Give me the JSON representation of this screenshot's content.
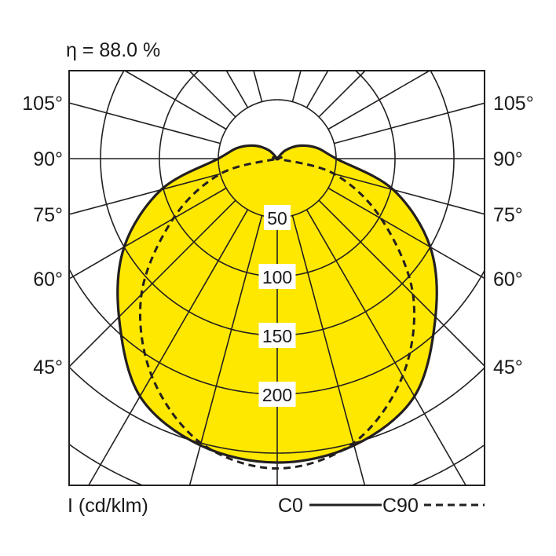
{
  "chart_data": {
    "type": "polar",
    "title": "η = 88.0 %",
    "unit_label": "I (cd/klm)",
    "angles_deg": [
      0,
      15,
      30,
      45,
      60,
      75,
      90,
      105,
      120,
      135,
      150,
      165,
      180
    ],
    "series": [
      {
        "name": "C0",
        "style": "solid",
        "values": [
          258,
          252,
          233,
          190,
          150,
          102,
          50,
          35,
          22,
          10,
          0,
          0,
          0
        ]
      },
      {
        "name": "C90",
        "style": "dashed",
        "values": [
          263,
          250,
          213,
          163,
          102,
          50,
          0,
          0,
          0,
          0,
          0,
          0,
          0
        ]
      }
    ],
    "radial_ticks": [
      50,
      100,
      150,
      200
    ],
    "radial_grid": [
      50,
      100,
      150,
      200,
      250,
      300
    ],
    "angle_grid_step_deg": 15,
    "angle_labels": [
      "105°",
      "90°",
      "75°",
      "60°",
      "45°"
    ],
    "colors": {
      "fill": "#FFE800",
      "line": "#231f20",
      "grid": "#231f20"
    }
  },
  "legend": {
    "c0": "C0",
    "c90": "C90"
  }
}
